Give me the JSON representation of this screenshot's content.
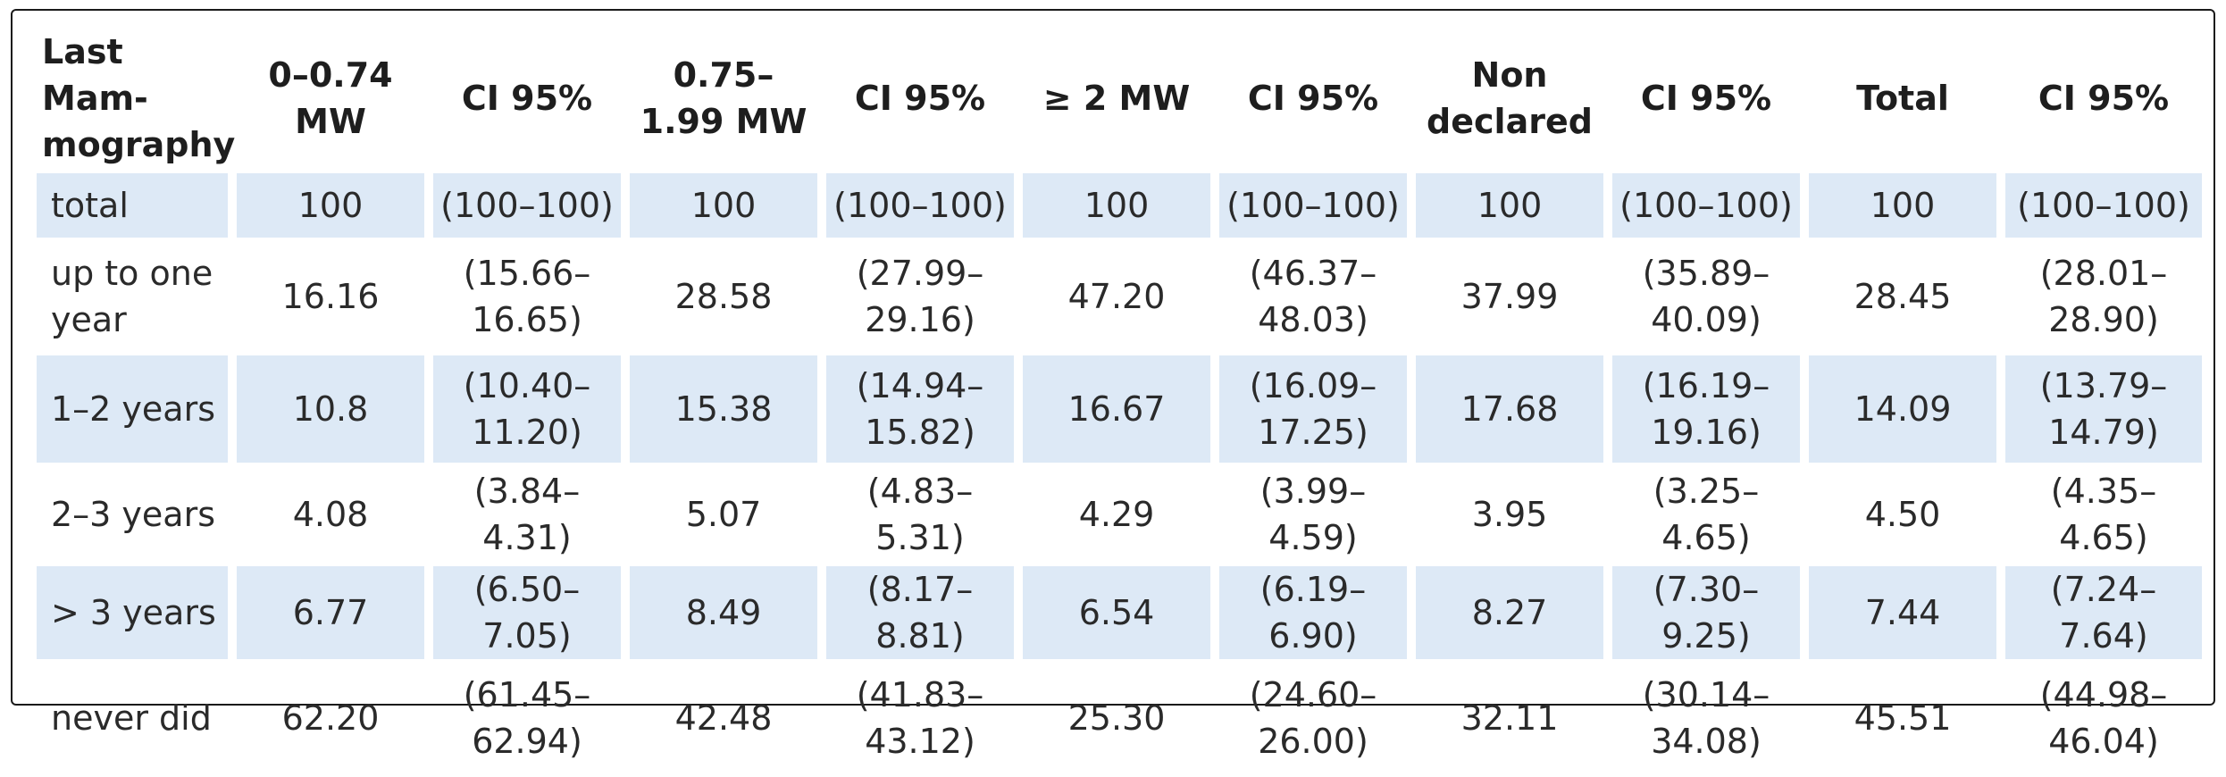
{
  "headers": [
    "Last Mam-mography",
    "0–0.74 MW",
    "CI 95%",
    "0.75–1.99 MW",
    "CI 95%",
    "≥ 2 MW",
    "CI 95%",
    "Non declared",
    "CI 95%",
    "Total",
    "CI 95%"
  ],
  "rows": [
    [
      "total",
      "100",
      "(100–100)",
      "100",
      "(100–100)",
      "100",
      "(100–100)",
      "100",
      "(100–100)",
      "100",
      "(100–100)"
    ],
    [
      "up to one year",
      "16.16",
      "(15.66–16.65)",
      "28.58",
      "(27.99–29.16)",
      "47.20",
      "(46.37–48.03)",
      "37.99",
      "(35.89–40.09)",
      "28.45",
      "(28.01–28.90)"
    ],
    [
      "1–2 years",
      "10.8",
      "(10.40–11.20)",
      "15.38",
      "(14.94–15.82)",
      "16.67",
      "(16.09–17.25)",
      "17.68",
      "(16.19–19.16)",
      "14.09",
      "(13.79–14.79)"
    ],
    [
      "2–3 years",
      "4.08",
      "(3.84–4.31)",
      "5.07",
      "(4.83–5.31)",
      "4.29",
      "(3.99–4.59)",
      "3.95",
      "(3.25–4.65)",
      "4.50",
      "(4.35–4.65)"
    ],
    [
      "> 3 years",
      "6.77",
      "(6.50–7.05)",
      "8.49",
      "(8.17–8.81)",
      "6.54",
      "(6.19–6.90)",
      "8.27",
      "(7.30–9.25)",
      "7.44",
      "(7.24–7.64)"
    ],
    [
      "never did",
      "62.20",
      "(61.45–62.94)",
      "42.48",
      "(41.83–43.12)",
      "25.30",
      "(24.60–26.00)",
      "32.11",
      "(30.14–34.08)",
      "45.51",
      "(44.98–46.04)"
    ]
  ]
}
